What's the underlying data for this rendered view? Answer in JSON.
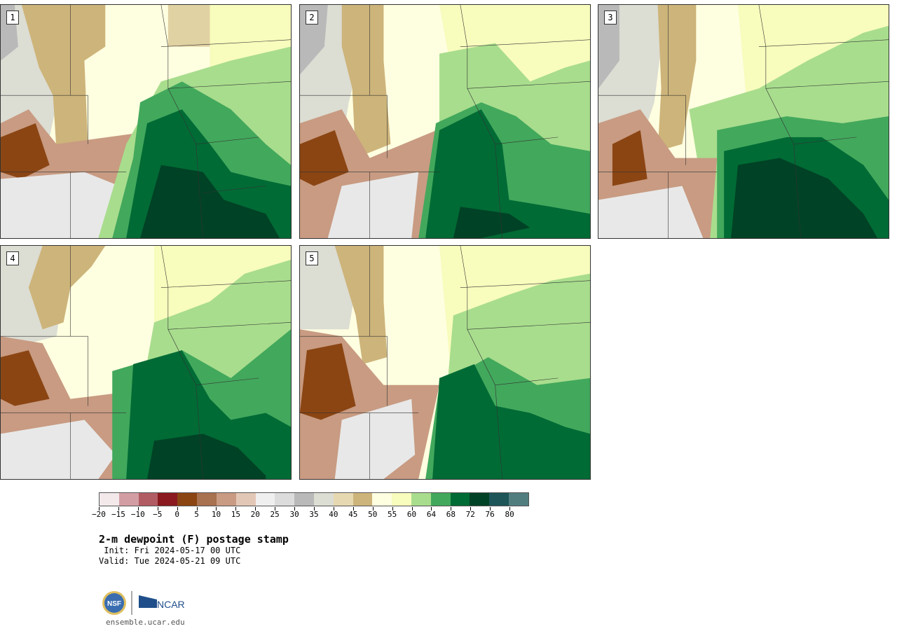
{
  "panels": [
    {
      "label": "1"
    },
    {
      "label": "2"
    },
    {
      "label": "3"
    },
    {
      "label": "4"
    },
    {
      "label": "5"
    }
  ],
  "colorbar": {
    "colors": [
      "#f3e9ea",
      "#d39ea3",
      "#b15c63",
      "#8a1a1f",
      "#8b4513",
      "#a8714f",
      "#c89b82",
      "#e3c7b6",
      "#efefef",
      "#dcdcdc",
      "#b9b9b9",
      "#dcddd3",
      "#e6d8b0",
      "#cdb47a",
      "#fefee0",
      "#f8fcbc",
      "#a8dd8d",
      "#42a85c",
      "#006b35",
      "#004225",
      "#1d5558",
      "#527d7f"
    ],
    "tick_labels": [
      "−20",
      "−15",
      "−10",
      "−5",
      "0",
      "5",
      "10",
      "15",
      "20",
      "25",
      "30",
      "35",
      "40",
      "45",
      "50",
      "55",
      "60",
      "64",
      "68",
      "72",
      "76",
      "80"
    ]
  },
  "title": "2-m dewpoint (F) postage stamp",
  "init": " Init: Fri 2024-05-17 00 UTC",
  "valid": "Valid: Tue 2024-05-21 09 UTC",
  "logos": {
    "nsf": "NSF",
    "ncar": "NCAR"
  },
  "site": "ensemble.ucar.edu"
}
